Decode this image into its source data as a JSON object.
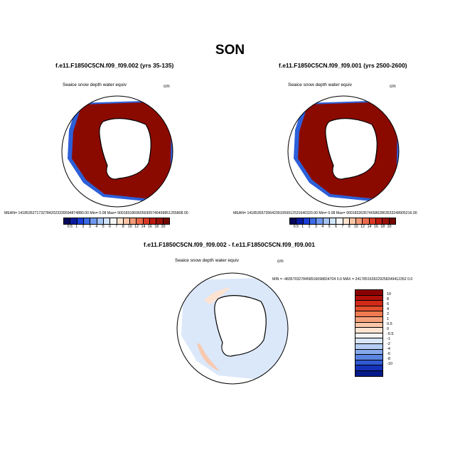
{
  "title": "SON",
  "panels": [
    {
      "case": "f.e11.F1850C5CN.f09_f09.002 (yrs 35-135)",
      "variable": "Seaice snow depth water equiv",
      "units": "cm",
      "stats": "MEAN= 14185352717327842023339594874880.00  Min=   0.08  Max= 90018318696059305746499851255808.00"
    },
    {
      "case": "f.e11.F1850C5CN.f09_f09.001 (yrs 2500-2600)",
      "variable": "Seaice snow depth water equiv",
      "units": "cm",
      "stats": "MEAN= 14185355739642391059912531640320.00  Min=   0.08  Max= 90018326357465862863533248905216.00"
    }
  ],
  "difference": {
    "case": "f.e11.F1850C5CN.f09_f09.002 - f.e11.F1850C5CN.f09_f09.001",
    "variable": "Seaice snow depth water equiv",
    "units": "cm",
    "stats": "MIN = -4835703278458516698824704 0.0  MAX = 2417851639229258349412352 0.0"
  },
  "colorbar_abs": {
    "labels": [
      "0.5",
      "1",
      "2",
      "3",
      "4",
      "5",
      "6",
      "7",
      "8",
      "10",
      "12",
      "14",
      "16",
      "18",
      "20"
    ],
    "colors": [
      "#08085a",
      "#0a1a9e",
      "#1a3ed6",
      "#3a6ae6",
      "#6f97ee",
      "#a5c4f5",
      "#d2e4fb",
      "#f5f5f5",
      "#fde3cf",
      "#fac4a6",
      "#f49a78",
      "#eb6a4c",
      "#d93a26",
      "#bb1a10",
      "#961008",
      "#730800"
    ]
  },
  "colorbar_diff": {
    "labels": [
      "10",
      "8",
      "6",
      "4",
      "2",
      "1",
      "0.5",
      "0",
      "-0.5",
      "-1",
      "-2",
      "-4",
      "-6",
      "-8",
      "-10"
    ],
    "colors": [
      "#8b0000",
      "#b00f0a",
      "#d12a18",
      "#e4502e",
      "#ef7a52",
      "#f5a27c",
      "#f9c6a8",
      "#fde4d2",
      "#f3f3f3",
      "#d8e6fb",
      "#b4cdf4",
      "#86a9ec",
      "#5a83e2",
      "#3059d2",
      "#1432b8",
      "#061a8a"
    ]
  }
}
